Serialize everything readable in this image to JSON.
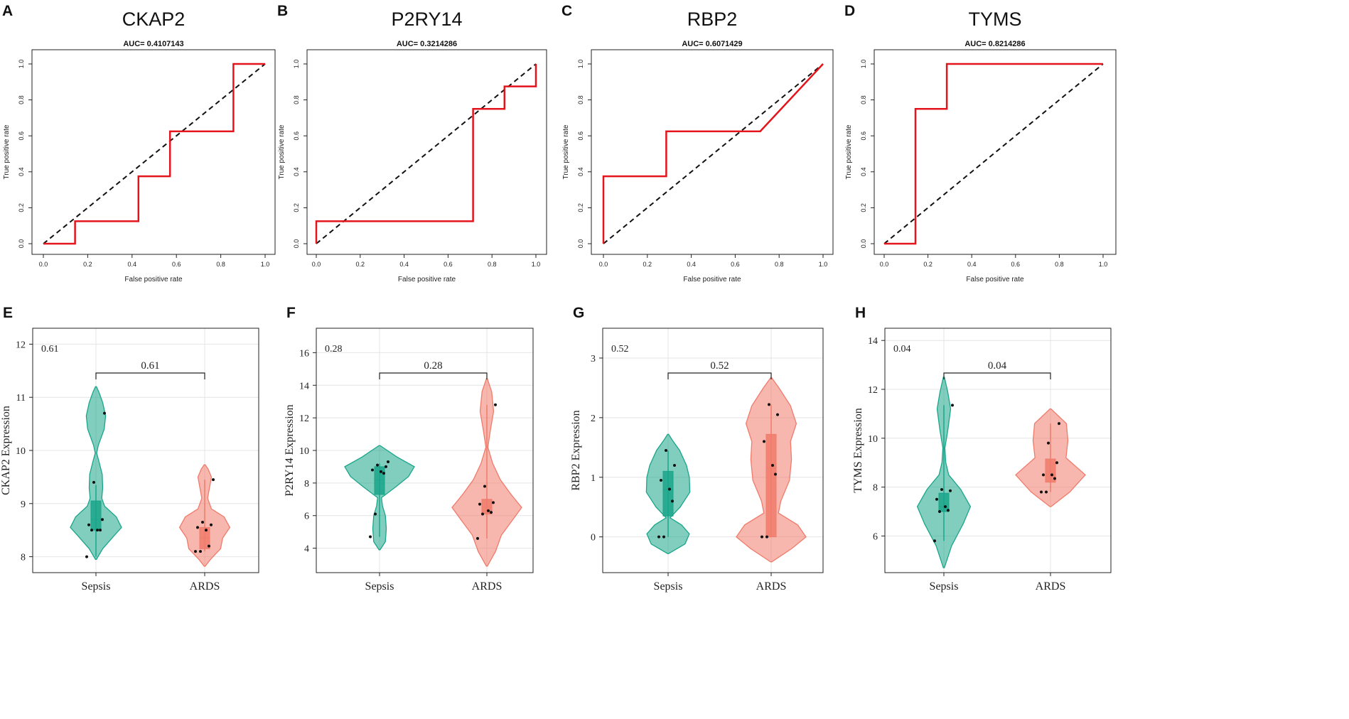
{
  "chart_data": [
    {
      "type": "line",
      "panel": "A",
      "title": "CKAP2",
      "subtitle": "AUC= 0.4107143",
      "xlabel": "False positive rate",
      "ylabel": "True positive rate",
      "xlim": [
        0,
        1
      ],
      "ylim": [
        0,
        1
      ],
      "ticks": [
        "0.0",
        "0.2",
        "0.4",
        "0.6",
        "0.8",
        "1.0"
      ],
      "roc": [
        [
          0,
          0
        ],
        [
          0.143,
          0
        ],
        [
          0.143,
          0.125
        ],
        [
          0.429,
          0.125
        ],
        [
          0.429,
          0.375
        ],
        [
          0.571,
          0.375
        ],
        [
          0.571,
          0.625
        ],
        [
          0.857,
          0.625
        ],
        [
          0.857,
          1
        ],
        [
          1,
          1
        ]
      ]
    },
    {
      "type": "line",
      "panel": "B",
      "title": "P2RY14",
      "subtitle": "AUC= 0.3214286",
      "xlabel": "False positive rate",
      "ylabel": "True positive rate",
      "xlim": [
        0,
        1
      ],
      "ylim": [
        0,
        1
      ],
      "ticks": [
        "0.0",
        "0.2",
        "0.4",
        "0.6",
        "0.8",
        "1.0"
      ],
      "roc": [
        [
          0,
          0
        ],
        [
          0,
          0.125
        ],
        [
          0.714,
          0.125
        ],
        [
          0.714,
          0.75
        ],
        [
          0.857,
          0.75
        ],
        [
          0.857,
          0.875
        ],
        [
          1,
          0.875
        ],
        [
          1,
          1
        ]
      ]
    },
    {
      "type": "line",
      "panel": "C",
      "title": "RBP2",
      "subtitle": "AUC= 0.6071429",
      "xlabel": "False positive rate",
      "ylabel": "True positive rate",
      "xlim": [
        0,
        1
      ],
      "ylim": [
        0,
        1
      ],
      "ticks": [
        "0.0",
        "0.2",
        "0.4",
        "0.6",
        "0.8",
        "1.0"
      ],
      "roc": [
        [
          0,
          0
        ],
        [
          0,
          0.375
        ],
        [
          0.286,
          0.375
        ],
        [
          0.286,
          0.625
        ],
        [
          0.714,
          0.625
        ],
        [
          1,
          1
        ]
      ]
    },
    {
      "type": "line",
      "panel": "D",
      "title": "TYMS",
      "subtitle": "AUC= 0.8214286",
      "xlabel": "False positive rate",
      "ylabel": "True positive rate",
      "xlim": [
        0,
        1
      ],
      "ylim": [
        0,
        1
      ],
      "ticks": [
        "0.0",
        "0.2",
        "0.4",
        "0.6",
        "0.8",
        "1.0"
      ],
      "roc": [
        [
          0,
          0
        ],
        [
          0.143,
          0
        ],
        [
          0.143,
          0.75
        ],
        [
          0.286,
          0.75
        ],
        [
          0.286,
          1
        ],
        [
          1,
          1
        ]
      ]
    },
    {
      "type": "violin",
      "panel": "E",
      "ylabel": "CKAP2 Expression",
      "pvalue": "0.61",
      "categories": [
        "Sepsis",
        "ARDS"
      ],
      "ylim": [
        7.7,
        12.3
      ],
      "yticks": [
        8,
        9,
        10,
        11,
        12
      ],
      "groups": [
        {
          "name": "Sepsis",
          "color": "#1aa58a",
          "box": {
            "q1": 8.5,
            "median": 8.7,
            "q3": 9.05,
            "whisker_low": 8.0,
            "whisker_high": 9.35
          },
          "points": [
            8.0,
            8.5,
            8.5,
            8.5,
            8.6,
            8.7,
            9.4,
            10.7
          ],
          "profile": [
            [
              7.95,
              0.01
            ],
            [
              8.15,
              0.14
            ],
            [
              8.4,
              0.38
            ],
            [
              8.55,
              0.53
            ],
            [
              8.75,
              0.42
            ],
            [
              8.95,
              0.18
            ],
            [
              9.1,
              0.12
            ],
            [
              9.3,
              0.14
            ],
            [
              9.55,
              0.13
            ],
            [
              9.8,
              0.06
            ],
            [
              9.95,
              0.015
            ],
            [
              10.1,
              0.05
            ],
            [
              10.4,
              0.17
            ],
            [
              10.65,
              0.2
            ],
            [
              10.9,
              0.14
            ],
            [
              11.1,
              0.06
            ],
            [
              11.2,
              0.01
            ]
          ]
        },
        {
          "name": "ARDS",
          "color": "#f07b6b",
          "box": {
            "q1": 8.15,
            "median": 8.35,
            "q3": 8.55,
            "whisker_low": 8.1,
            "whisker_high": 9.45
          },
          "points": [
            8.1,
            8.1,
            8.2,
            8.5,
            8.55,
            8.6,
            8.65,
            9.45
          ],
          "profile": [
            [
              7.82,
              0.01
            ],
            [
              7.95,
              0.12
            ],
            [
              8.15,
              0.33
            ],
            [
              8.35,
              0.37
            ],
            [
              8.55,
              0.52
            ],
            [
              8.75,
              0.4
            ],
            [
              8.9,
              0.14
            ],
            [
              9.1,
              0.06
            ],
            [
              9.3,
              0.1
            ],
            [
              9.5,
              0.14
            ],
            [
              9.65,
              0.07
            ],
            [
              9.73,
              0.01
            ]
          ]
        }
      ]
    },
    {
      "type": "violin",
      "panel": "F",
      "ylabel": "P2RY14 Expression",
      "pvalue": "0.28",
      "categories": [
        "Sepsis",
        "ARDS"
      ],
      "ylim": [
        2.5,
        17.5
      ],
      "yticks": [
        4,
        6,
        8,
        10,
        12,
        14,
        16
      ],
      "groups": [
        {
          "name": "Sepsis",
          "color": "#1aa58a",
          "box": {
            "q1": 7.3,
            "median": 8.2,
            "q3": 9.0,
            "whisker_low": 4.7,
            "whisker_high": 9.2
          },
          "points": [
            4.7,
            6.1,
            8.6,
            8.7,
            8.8,
            9.0,
            9.1,
            9.3
          ],
          "profile": [
            [
              3.9,
              0.01
            ],
            [
              4.4,
              0.12
            ],
            [
              5.2,
              0.14
            ],
            [
              6.0,
              0.12
            ],
            [
              6.6,
              0.06
            ],
            [
              7.1,
              0.04
            ],
            [
              7.8,
              0.35
            ],
            [
              8.4,
              0.6
            ],
            [
              9.0,
              0.72
            ],
            [
              9.6,
              0.36
            ],
            [
              10.3,
              0.01
            ]
          ]
        },
        {
          "name": "ARDS",
          "color": "#f07b6b",
          "box": {
            "q1": 6.1,
            "median": 6.5,
            "q3": 7.0,
            "whisker_low": 4.6,
            "whisker_high": 12.8
          },
          "points": [
            4.6,
            6.1,
            6.2,
            6.3,
            6.7,
            6.8,
            7.8,
            12.8
          ],
          "profile": [
            [
              2.9,
              0.01
            ],
            [
              3.8,
              0.18
            ],
            [
              4.8,
              0.3
            ],
            [
              5.8,
              0.55
            ],
            [
              6.5,
              0.72
            ],
            [
              7.3,
              0.5
            ],
            [
              8.2,
              0.28
            ],
            [
              9.2,
              0.12
            ],
            [
              10.2,
              0.02
            ],
            [
              11.2,
              0.07
            ],
            [
              12.4,
              0.14
            ],
            [
              13.6,
              0.1
            ],
            [
              14.4,
              0.01
            ]
          ]
        }
      ]
    },
    {
      "type": "violin",
      "panel": "G",
      "ylabel": "RBP2 Expression",
      "pvalue": "0.52",
      "categories": [
        "Sepsis",
        "ARDS"
      ],
      "ylim": [
        -0.6,
        3.5
      ],
      "yticks": [
        0,
        1,
        2,
        3
      ],
      "groups": [
        {
          "name": "Sepsis",
          "color": "#1aa58a",
          "box": {
            "q1": 0.35,
            "median": 0.8,
            "q3": 1.1,
            "whisker_low": 0.0,
            "whisker_high": 1.45
          },
          "points": [
            0.0,
            0.0,
            0.6,
            0.8,
            0.95,
            1.2,
            1.45
          ],
          "profile": [
            [
              -0.28,
              0.01
            ],
            [
              -0.12,
              0.35
            ],
            [
              0.05,
              0.44
            ],
            [
              0.2,
              0.28
            ],
            [
              0.32,
              0.04
            ],
            [
              0.5,
              0.25
            ],
            [
              0.75,
              0.45
            ],
            [
              1.0,
              0.44
            ],
            [
              1.2,
              0.38
            ],
            [
              1.45,
              0.24
            ],
            [
              1.62,
              0.09
            ],
            [
              1.72,
              0.01
            ]
          ]
        },
        {
          "name": "ARDS",
          "color": "#f07b6b",
          "box": {
            "q1": 0.0,
            "median": 1.15,
            "q3": 1.72,
            "whisker_low": 0.0,
            "whisker_high": 2.22
          },
          "points": [
            0.0,
            0.0,
            1.05,
            1.2,
            1.6,
            2.05,
            2.22
          ],
          "profile": [
            [
              -0.42,
              0.01
            ],
            [
              -0.2,
              0.42
            ],
            [
              0.0,
              0.72
            ],
            [
              0.2,
              0.55
            ],
            [
              0.4,
              0.15
            ],
            [
              0.6,
              0.2
            ],
            [
              0.95,
              0.38
            ],
            [
              1.3,
              0.42
            ],
            [
              1.6,
              0.4
            ],
            [
              1.9,
              0.52
            ],
            [
              2.2,
              0.4
            ],
            [
              2.5,
              0.16
            ],
            [
              2.67,
              0.01
            ]
          ]
        }
      ]
    },
    {
      "type": "violin",
      "panel": "H",
      "ylabel": "TYMS Expression",
      "pvalue": "0.04",
      "categories": [
        "Sepsis",
        "ARDS"
      ],
      "ylim": [
        4.5,
        14.5
      ],
      "yticks": [
        6,
        8,
        10,
        12,
        14
      ],
      "groups": [
        {
          "name": "Sepsis",
          "color": "#1aa58a",
          "box": {
            "q1": 7.0,
            "median": 7.2,
            "q3": 7.75,
            "whisker_low": 5.8,
            "whisker_high": 11.35
          },
          "points": [
            5.8,
            7.0,
            7.05,
            7.2,
            7.5,
            7.85,
            7.9,
            11.35
          ],
          "profile": [
            [
              4.7,
              0.01
            ],
            [
              5.6,
              0.16
            ],
            [
              6.5,
              0.4
            ],
            [
              7.2,
              0.55
            ],
            [
              7.9,
              0.35
            ],
            [
              8.5,
              0.1
            ],
            [
              9.0,
              0.04
            ],
            [
              9.6,
              0.02
            ],
            [
              10.3,
              0.08
            ],
            [
              11.2,
              0.14
            ],
            [
              11.9,
              0.08
            ],
            [
              12.5,
              0.01
            ]
          ]
        },
        {
          "name": "ARDS",
          "color": "#f07b6b",
          "box": {
            "q1": 8.2,
            "median": 8.5,
            "q3": 9.15,
            "whisker_low": 7.8,
            "whisker_high": 10.6
          },
          "points": [
            7.8,
            7.8,
            8.35,
            8.5,
            8.5,
            9.0,
            9.8,
            10.6
          ],
          "profile": [
            [
              7.2,
              0.01
            ],
            [
              7.8,
              0.4
            ],
            [
              8.5,
              0.72
            ],
            [
              9.2,
              0.32
            ],
            [
              9.9,
              0.36
            ],
            [
              10.6,
              0.33
            ],
            [
              11.2,
              0.01
            ]
          ]
        }
      ]
    }
  ]
}
